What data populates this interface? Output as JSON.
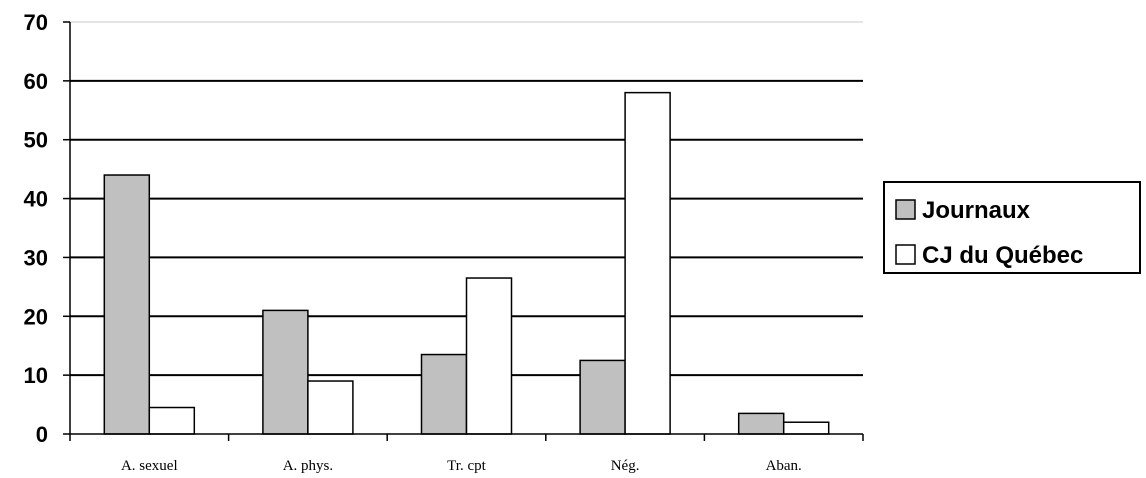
{
  "chart_data": {
    "type": "bar",
    "categories": [
      "A. sexuel",
      "A. phys.",
      "Tr. cpt",
      "Nég.",
      "Aban."
    ],
    "series": [
      {
        "name": "Journaux",
        "values": [
          44,
          21,
          13.5,
          12.5,
          3.5
        ],
        "color": "#c0c0c0"
      },
      {
        "name": "CJ du Québec",
        "values": [
          4.5,
          9,
          26.5,
          58,
          2
        ],
        "color": "#ffffff"
      }
    ],
    "title": "",
    "xlabel": "",
    "ylabel": "",
    "ylim": [
      0,
      70
    ],
    "yticks": [
      "0",
      "10",
      "20",
      "30",
      "40",
      "50",
      "60",
      "70"
    ],
    "grid": true,
    "legend_position": "right"
  }
}
